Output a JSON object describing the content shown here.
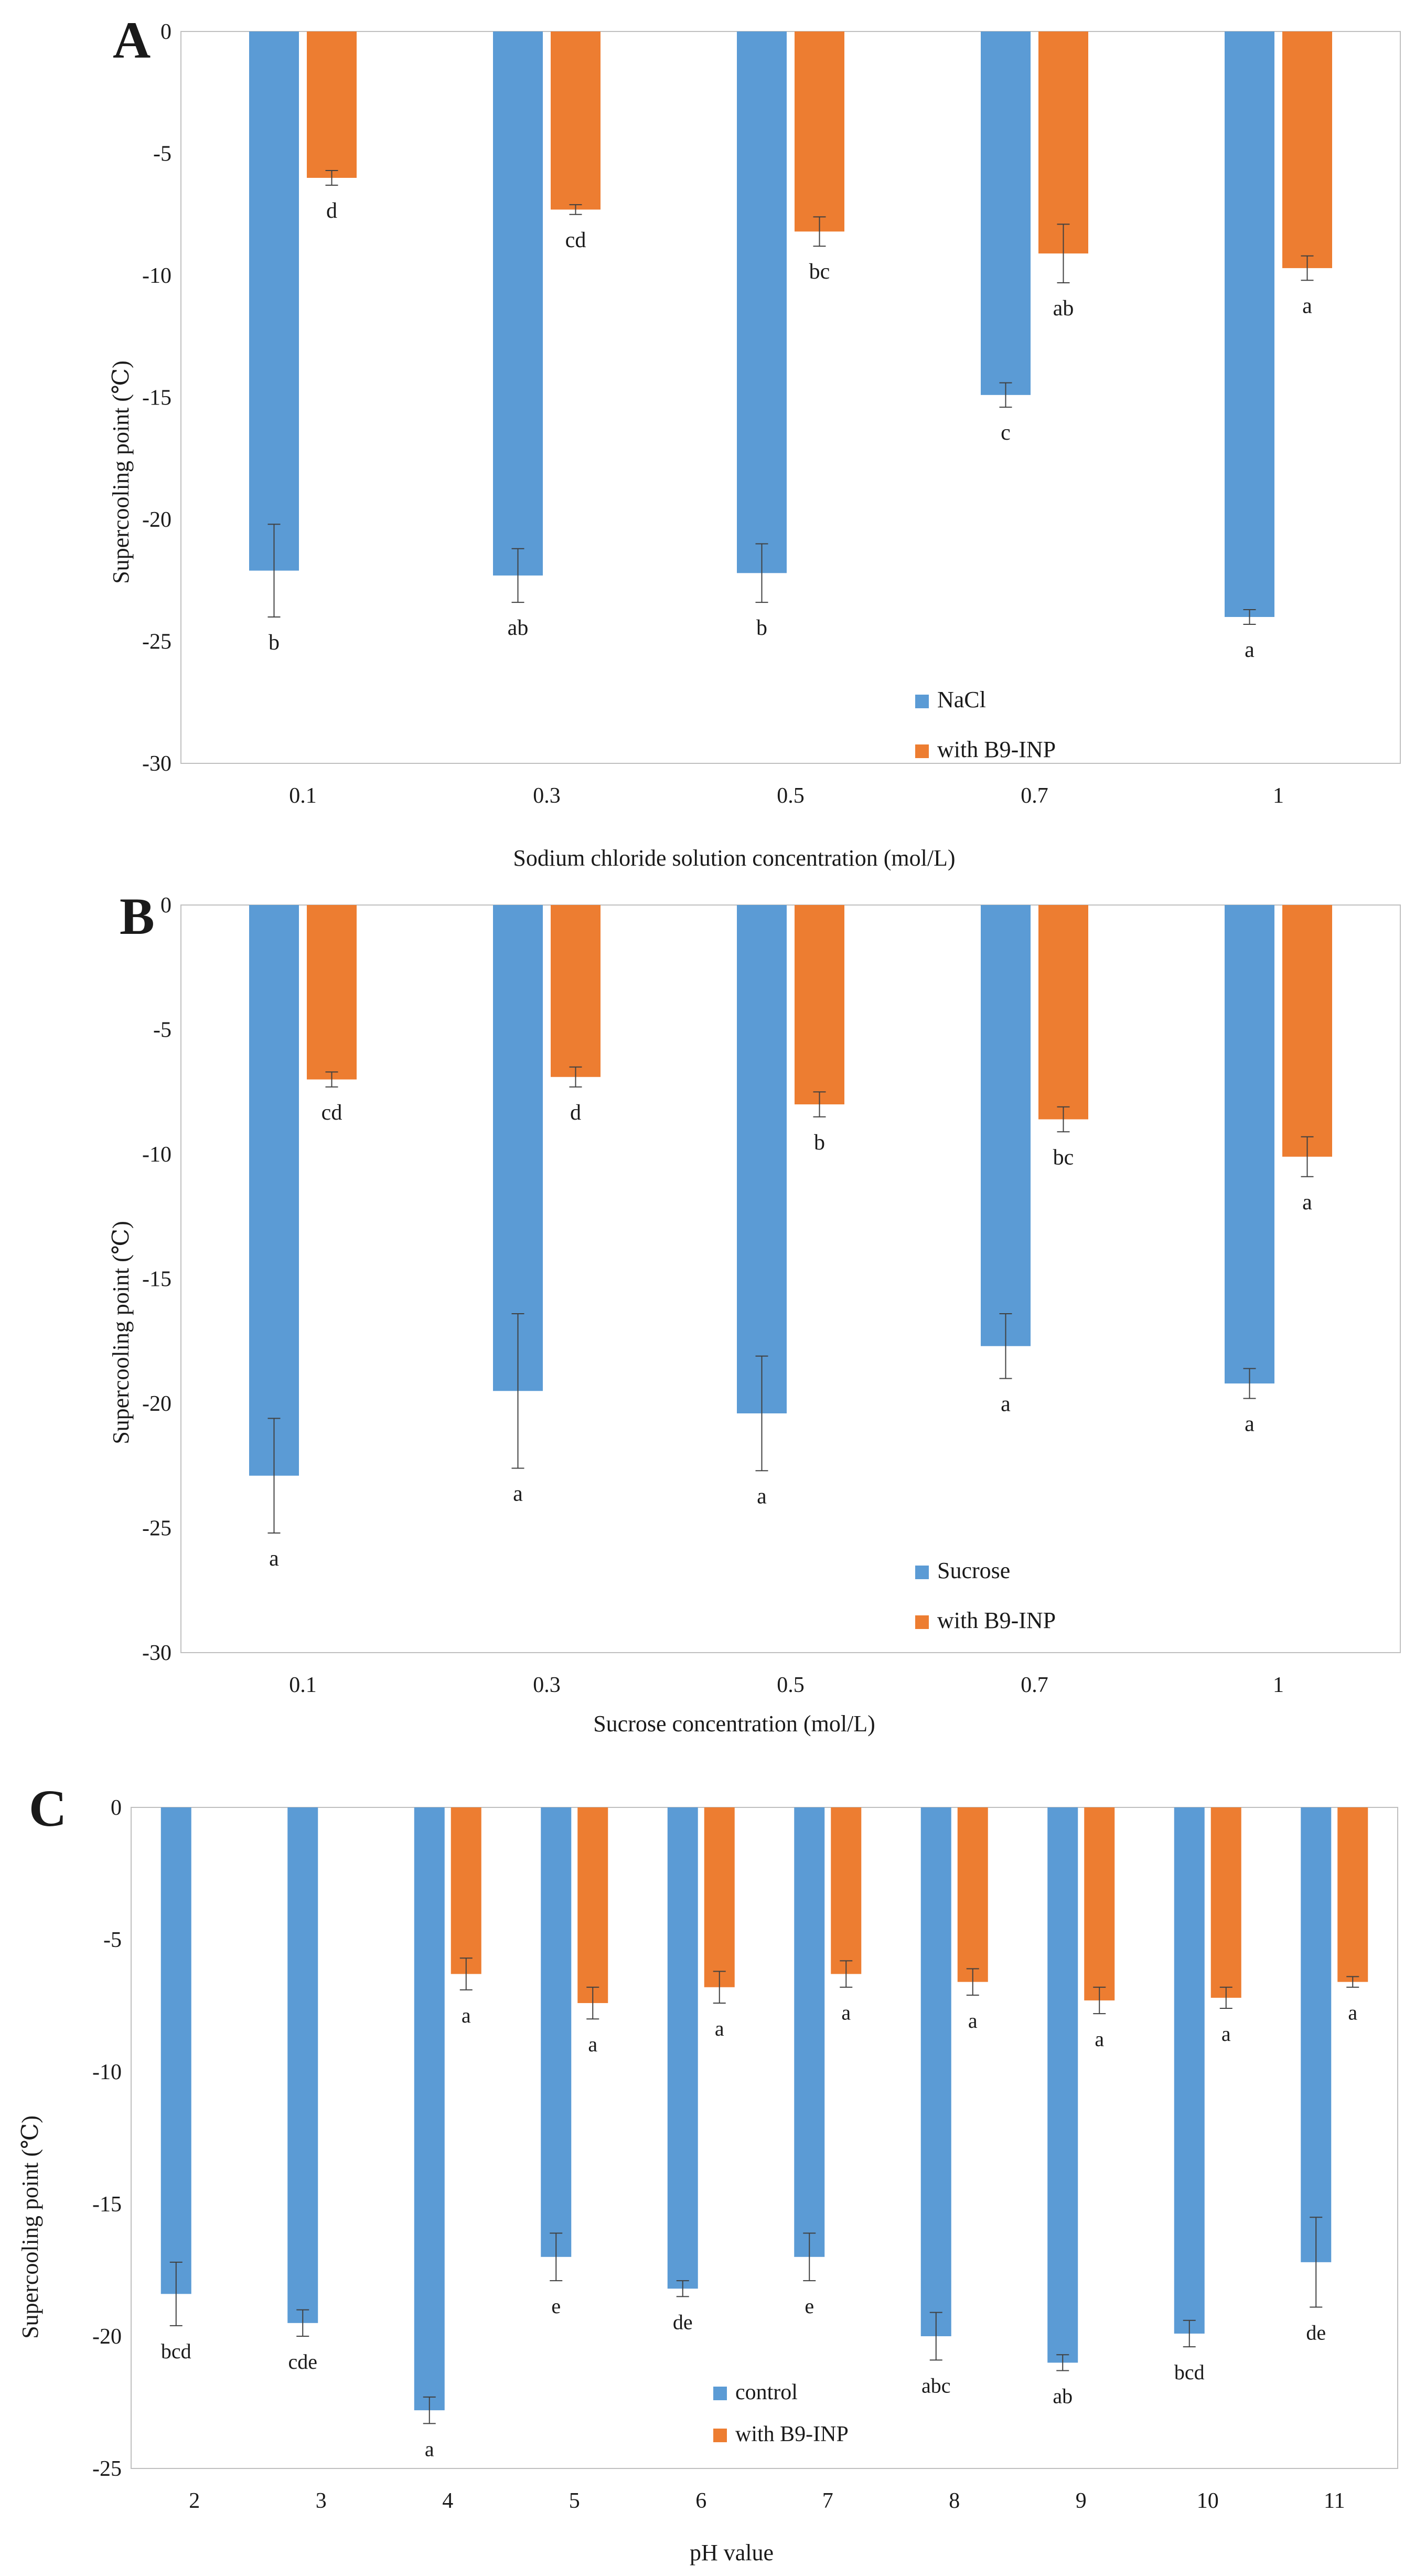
{
  "chart_data": [
    {
      "type": "bar",
      "panel_label": "A",
      "categories": [
        "0.1",
        "0.3",
        "0.5",
        "0.7",
        "1"
      ],
      "series": [
        {
          "name": "NaCl",
          "values": [
            -22.1,
            -22.3,
            -22.2,
            -14.9,
            -24.0
          ],
          "errors": [
            1.9,
            1.1,
            1.2,
            0.5,
            0.3
          ],
          "letters": [
            "b",
            "ab",
            "b",
            "c",
            "a"
          ],
          "color": "#5b9bd5"
        },
        {
          "name": "with B9-INP",
          "values": [
            -6.0,
            -7.3,
            -8.2,
            -9.1,
            -9.7
          ],
          "errors": [
            0.3,
            0.2,
            0.6,
            1.2,
            0.5
          ],
          "letters": [
            "d",
            "cd",
            "bc",
            "ab",
            "a"
          ],
          "color": "#ed7d31"
        }
      ],
      "xlabel": "Sodium chloride solution concentration (mol/L)",
      "ylabel": "Supercooling point (℃)",
      "ylim": [
        -30,
        0
      ],
      "yticks": [
        0,
        -5,
        -10,
        -15,
        -20,
        -25,
        -30
      ],
      "grid": false,
      "legend_position": "bottom-right"
    },
    {
      "type": "bar",
      "panel_label": "B",
      "categories": [
        "0.1",
        "0.3",
        "0.5",
        "0.7",
        "1"
      ],
      "series": [
        {
          "name": "Sucrose",
          "values": [
            -22.9,
            -19.5,
            -20.4,
            -17.7,
            -19.2
          ],
          "errors": [
            2.3,
            3.1,
            2.3,
            1.3,
            0.6
          ],
          "letters": [
            "a",
            "a",
            "a",
            "a",
            "a"
          ],
          "color": "#5b9bd5"
        },
        {
          "name": "with B9-INP",
          "values": [
            -7.0,
            -6.9,
            -8.0,
            -8.6,
            -10.1
          ],
          "errors": [
            0.3,
            0.4,
            0.5,
            0.5,
            0.8
          ],
          "letters": [
            "cd",
            "d",
            "b",
            "bc",
            "a"
          ],
          "color": "#ed7d31"
        }
      ],
      "xlabel": "Sucrose concentration (mol/L)",
      "ylabel": "Supercooling point (℃)",
      "ylim": [
        -30,
        0
      ],
      "yticks": [
        0,
        -5,
        -10,
        -15,
        -20,
        -25,
        -30
      ],
      "grid": false,
      "legend_position": "bottom-right"
    },
    {
      "type": "bar",
      "panel_label": "C",
      "categories": [
        "2",
        "3",
        "4",
        "5",
        "6",
        "7",
        "8",
        "9",
        "10",
        "11"
      ],
      "series": [
        {
          "name": "control",
          "values": [
            -18.4,
            -19.5,
            -22.8,
            -17.0,
            -18.2,
            -17.0,
            -20.0,
            -21.0,
            -19.9,
            -17.2
          ],
          "errors": [
            1.2,
            0.5,
            0.5,
            0.9,
            0.3,
            0.9,
            0.9,
            0.3,
            0.5,
            1.7
          ],
          "letters": [
            "bcd",
            "cde",
            "a",
            "e",
            "de",
            "e",
            "abc",
            "ab",
            "bcd",
            "de"
          ],
          "color": "#5b9bd5"
        },
        {
          "name": "with B9-INP",
          "values": [
            null,
            null,
            -6.3,
            -7.4,
            -6.8,
            -6.3,
            -6.6,
            -7.3,
            -7.2,
            -6.6
          ],
          "errors": [
            null,
            null,
            0.6,
            0.6,
            0.6,
            0.5,
            0.5,
            0.5,
            0.4,
            0.2
          ],
          "letters": [
            "",
            "",
            "a",
            "a",
            "a",
            "a",
            "a",
            "a",
            "a",
            "a"
          ],
          "color": "#ed7d31"
        }
      ],
      "xlabel": "pH  value",
      "ylabel": "Supercooling point (℃)",
      "ylim": [
        -25,
        0
      ],
      "yticks": [
        0,
        -5,
        -10,
        -15,
        -20,
        -25
      ],
      "grid": false,
      "legend_position": "bottom-center"
    }
  ]
}
